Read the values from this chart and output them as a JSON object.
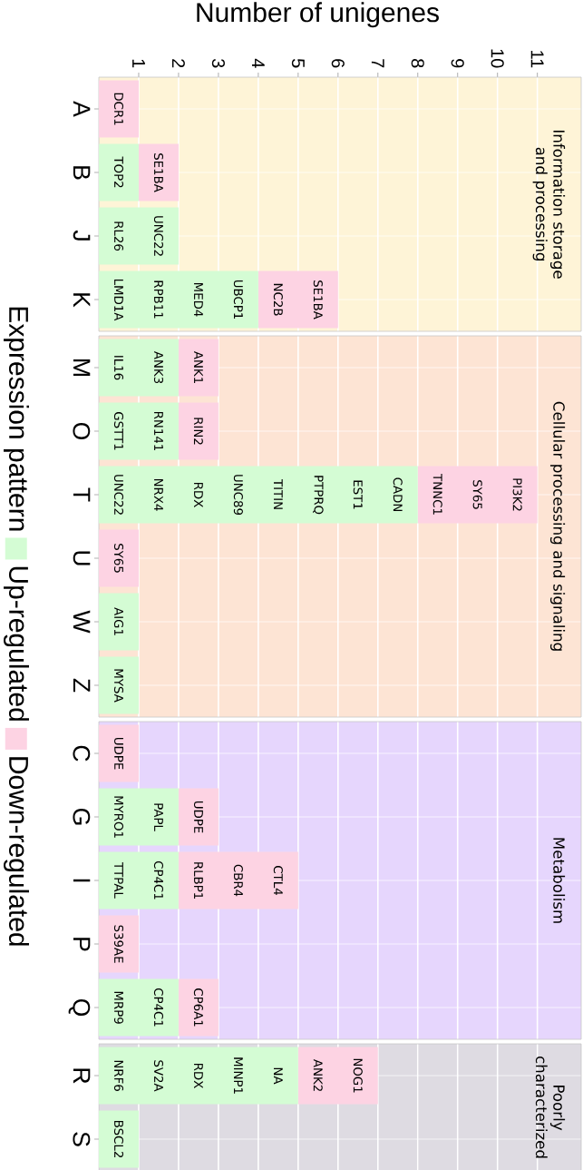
{
  "chart_data": [
    {
      "type": "bar",
      "orientation": "horizontal",
      "stacked": true,
      "xlabel": "Number of unigenes",
      "legend": "left",
      "legend_title": "Expression pattern",
      "grid": true,
      "xlim": [
        0,
        12.1
      ],
      "xticks": [
        1,
        2,
        3,
        4,
        5,
        6,
        7,
        8,
        9,
        10,
        11
      ],
      "categories": [
        "A",
        "B",
        "J",
        "K"
      ],
      "series": [
        {
          "name": "Up-regulated",
          "color": "#d4fcd4",
          "values": [
            0,
            1,
            2,
            4
          ]
        },
        {
          "name": "Down-regulated",
          "color": "#fdd3e3",
          "values": [
            1,
            1,
            0,
            2
          ]
        }
      ],
      "title": "Information storage and processing",
      "annotations": [
        {
          "text": "DCR1",
          "x": 0.5,
          "y": "A"
        },
        {
          "text": "TOP2",
          "x": 0.5,
          "y": "B"
        },
        {
          "text": "SE1BA",
          "x": 1.5,
          "y": "B"
        },
        {
          "text": "RL26",
          "x": 0.5,
          "y": "J"
        },
        {
          "text": "UNC22",
          "x": 1.5,
          "y": "J"
        },
        {
          "text": "LMD1A",
          "x": 0.5,
          "y": "K"
        },
        {
          "text": "RPB11",
          "x": 1.5,
          "y": "K"
        },
        {
          "text": "MED4",
          "x": 2.5,
          "y": "K"
        },
        {
          "text": "UBCP1",
          "x": 3.5,
          "y": "K"
        },
        {
          "text": "NC2B",
          "x": 4.5,
          "y": "K"
        },
        {
          "text": "SE1BA",
          "x": 5.5,
          "y": "K"
        }
      ]
    },
    {
      "type": "bar",
      "orientation": "horizontal",
      "stacked": true,
      "grid": true,
      "tick_labels": "y",
      "xlim": [
        0,
        12.1
      ],
      "xticks": [
        1,
        2,
        3,
        4,
        5,
        6,
        7,
        8,
        9,
        10,
        11
      ],
      "categories": [
        "M",
        "O",
        "T",
        "U",
        "W",
        "Z"
      ],
      "series": [
        {
          "color": "#d4fcd4",
          "values": [
            2,
            2,
            8,
            0,
            1,
            1
          ]
        },
        {
          "color": "#fdd3e3",
          "values": [
            1,
            1,
            3,
            1,
            0,
            0
          ]
        }
      ],
      "title": "Cellular processing and signaling",
      "annotations": [
        {
          "text": "IL16",
          "x": 0.5,
          "y": "M"
        },
        {
          "text": "ANK3",
          "x": 1.5,
          "y": "M"
        },
        {
          "text": "ANK1",
          "x": 2.5,
          "y": "M"
        },
        {
          "text": "GSTT1",
          "x": 0.5,
          "y": "O"
        },
        {
          "text": "RN141",
          "x": 1.5,
          "y": "O"
        },
        {
          "text": "RIN2",
          "x": 2.5,
          "y": "O"
        },
        {
          "text": "UNC22",
          "x": 0.5,
          "y": "T"
        },
        {
          "text": "NRX4",
          "x": 1.5,
          "y": "T"
        },
        {
          "text": "RDX",
          "x": 2.5,
          "y": "T"
        },
        {
          "text": "UNC89",
          "x": 3.5,
          "y": "T"
        },
        {
          "text": "TITIN",
          "x": 4.5,
          "y": "T"
        },
        {
          "text": "PTPRQ",
          "x": 5.5,
          "y": "T"
        },
        {
          "text": "EST1",
          "x": 6.5,
          "y": "T"
        },
        {
          "text": "CADN",
          "x": 7.5,
          "y": "T"
        },
        {
          "text": "TNNC1",
          "x": 8.5,
          "y": "T"
        },
        {
          "text": "SY65",
          "x": 9.5,
          "y": "T"
        },
        {
          "text": "PI3K2",
          "x": 10.5,
          "y": "T"
        },
        {
          "text": "SY65",
          "x": 0.5,
          "y": "U"
        },
        {
          "text": "AIG1",
          "x": 0.5,
          "y": "W"
        },
        {
          "text": "MYSA",
          "x": 0.5,
          "y": "Z"
        }
      ]
    },
    {
      "type": "bar",
      "orientation": "horizontal",
      "stacked": true,
      "grid": true,
      "tick_labels": "y",
      "xlim": [
        0,
        12.1
      ],
      "xticks": [
        1,
        2,
        3,
        4,
        5,
        6,
        7,
        8,
        9,
        10,
        11
      ],
      "categories": [
        "C",
        "G",
        "I",
        "P",
        "Q"
      ],
      "series": [
        {
          "color": "#d4fcd4",
          "values": [
            0,
            2,
            2,
            0,
            2
          ]
        },
        {
          "color": "#fdd3e3",
          "values": [
            1,
            1,
            3,
            1,
            1
          ]
        }
      ],
      "title": "Metabolism",
      "annotations": [
        {
          "text": "UDPE",
          "x": 0.5,
          "y": "C"
        },
        {
          "text": "MYRO1",
          "x": 0.5,
          "y": "G"
        },
        {
          "text": "PAPL",
          "x": 1.5,
          "y": "G"
        },
        {
          "text": "UDPE",
          "x": 2.5,
          "y": "G"
        },
        {
          "text": "TTPAL",
          "x": 0.5,
          "y": "I"
        },
        {
          "text": "CP4C1",
          "x": 1.5,
          "y": "I"
        },
        {
          "text": "RLBP1",
          "x": 2.5,
          "y": "I"
        },
        {
          "text": "CBR4",
          "x": 3.5,
          "y": "I"
        },
        {
          "text": "CTL4",
          "x": 4.5,
          "y": "I"
        },
        {
          "text": "S39AE",
          "x": 0.5,
          "y": "P"
        },
        {
          "text": "MRP9",
          "x": 0.5,
          "y": "Q"
        },
        {
          "text": "CP4C1",
          "x": 1.5,
          "y": "Q"
        },
        {
          "text": "CP6A1",
          "x": 2.5,
          "y": "Q"
        }
      ]
    },
    {
      "type": "bar",
      "orientation": "horizontal",
      "stacked": true,
      "grid": true,
      "tick_labels": "y",
      "xlim": [
        0,
        12.1
      ],
      "xticks": [
        1,
        2,
        3,
        4,
        5,
        6,
        7,
        8,
        9,
        10,
        11
      ],
      "categories": [
        "R",
        "S"
      ],
      "series": [
        {
          "color": "#d4fcd4",
          "values": [
            5,
            1
          ]
        },
        {
          "color": "#fdd3e3",
          "values": [
            2,
            0
          ]
        }
      ],
      "title": "Poorly characterized",
      "annotations": [
        {
          "text": "NRF6",
          "x": 0.5,
          "y": "R"
        },
        {
          "text": "SV2A",
          "x": 1.5,
          "y": "R"
        },
        {
          "text": "RDX",
          "x": 2.5,
          "y": "R"
        },
        {
          "text": "MINP1",
          "x": 3.5,
          "y": "R"
        },
        {
          "text": "NA",
          "x": 4.5,
          "y": "R"
        },
        {
          "text": "ANK2",
          "x": 5.5,
          "y": "R"
        },
        {
          "text": "NOG1",
          "x": 6.5,
          "y": "R"
        },
        {
          "text": "BSCL2",
          "x": 0.5,
          "y": "S"
        }
      ]
    }
  ]
}
